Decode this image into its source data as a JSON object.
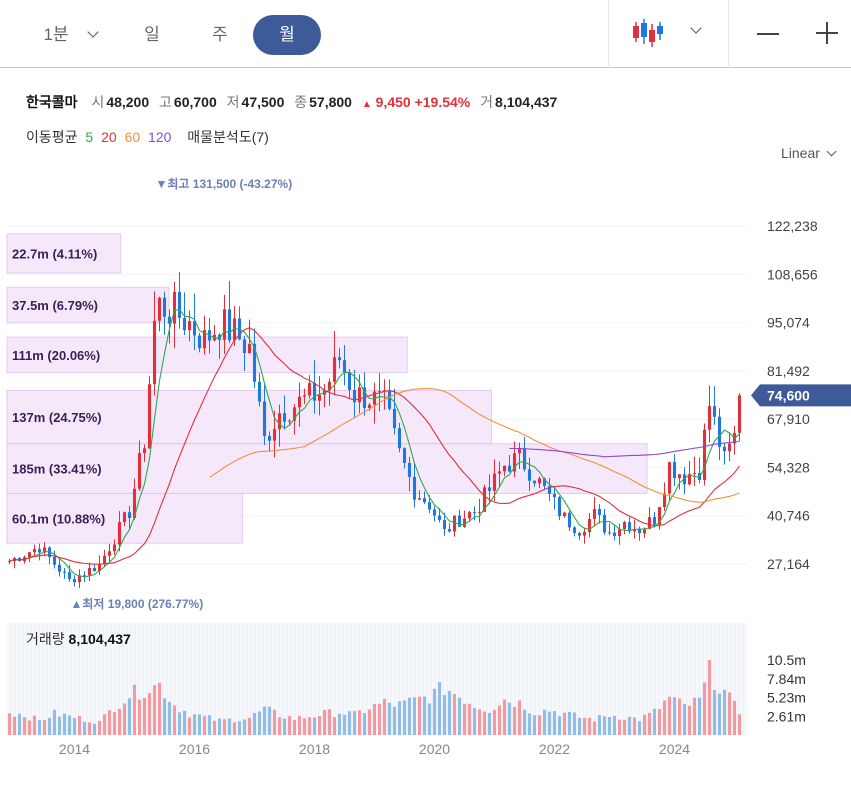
{
  "toolbar": {
    "timeframes": [
      {
        "label": "1분"
      },
      {
        "label": "일"
      },
      {
        "label": "주"
      },
      {
        "label": "월",
        "active": true
      }
    ],
    "chart_type_icon": "candlestick-icon",
    "zoom_out_icon": "minus-icon",
    "zoom_in_icon": "plus-icon"
  },
  "quote": {
    "name": "한국콜마",
    "open_label": "시",
    "open": "48,200",
    "high_label": "고",
    "high": "60,700",
    "low_label": "저",
    "low": "47,500",
    "close_label": "종",
    "close": "57,800",
    "change": "9,450",
    "change_pct": "+19.54%",
    "volume_label": "거",
    "volume": "8,104,437"
  },
  "indicators": {
    "ma_label": "이동평균",
    "ma_periods": [
      {
        "label": "5",
        "color": "#2eaa4a"
      },
      {
        "label": "20",
        "color": "#e0303a"
      },
      {
        "label": "60",
        "color": "#f0923a"
      },
      {
        "label": "120",
        "color": "#8a4ad8"
      }
    ],
    "volume_profile_label": "매물분석도(7)"
  },
  "scale_mode": "Linear",
  "colors": {
    "up": "#e0303a",
    "down": "#1f78e0",
    "accent": "#3d5a99"
  },
  "chart_data": {
    "type": "candlestick",
    "interval": "monthly",
    "y_ticks": [
      "122,238",
      "108,656",
      "95,074",
      "81,492",
      "67,910",
      "54,328",
      "40,746",
      "27,164"
    ],
    "y_tick_values": [
      122238,
      108656,
      95074,
      81492,
      67910,
      54328,
      40746,
      27164
    ],
    "current_price_label": "74,600",
    "current_price": 74600,
    "max_marker": {
      "label": "최고 131,500 (-43.27%)",
      "date": "2015-06",
      "value": 131500
    },
    "min_marker": {
      "label": "최저 19,800 (276.77%)",
      "date": "2014-01",
      "value": 19800
    },
    "x_ticks": [
      "2014",
      "2016",
      "2018",
      "2020",
      "2022",
      "2024"
    ],
    "x_start": "2012-12",
    "x_end": "2025-03",
    "volume_profile": [
      {
        "label": "22.7m (4.11%)",
        "low": 109000,
        "high": 120000,
        "share": 4.11
      },
      {
        "label": "37.5m (6.79%)",
        "low": 95000,
        "high": 105000,
        "share": 6.79
      },
      {
        "label": "111m (20.06%)",
        "low": 81000,
        "high": 91000,
        "share": 20.06
      },
      {
        "label": "137m (24.75%)",
        "low": 61000,
        "high": 76000,
        "share": 24.75
      },
      {
        "label": "185m (33.41%)",
        "low": 47000,
        "high": 61000,
        "share": 33.41
      },
      {
        "label": "60.1m (10.88%)",
        "low": 33000,
        "high": 47000,
        "share": 10.88
      }
    ],
    "close_anchors": [
      [
        "2012-12",
        28000
      ],
      [
        "2013-06",
        32000
      ],
      [
        "2013-12",
        22500
      ],
      [
        "2014-06",
        27000
      ],
      [
        "2014-12",
        42000
      ],
      [
        "2015-03",
        62000
      ],
      [
        "2015-05",
        95000
      ],
      [
        "2015-06",
        100000
      ],
      [
        "2015-09",
        98000
      ],
      [
        "2015-12",
        95000
      ],
      [
        "2016-03",
        90000
      ],
      [
        "2016-06",
        95000
      ],
      [
        "2016-09",
        92000
      ],
      [
        "2016-12",
        88000
      ],
      [
        "2017-03",
        62000
      ],
      [
        "2017-06",
        70000
      ],
      [
        "2017-09",
        72000
      ],
      [
        "2017-12",
        74000
      ],
      [
        "2018-03",
        76000
      ],
      [
        "2018-06",
        85000
      ],
      [
        "2018-09",
        75000
      ],
      [
        "2018-12",
        74000
      ],
      [
        "2019-03",
        72000
      ],
      [
        "2019-06",
        58000
      ],
      [
        "2019-09",
        48000
      ],
      [
        "2019-12",
        44000
      ],
      [
        "2020-03",
        36000
      ],
      [
        "2020-06",
        40000
      ],
      [
        "2020-09",
        42000
      ],
      [
        "2020-12",
        48000
      ],
      [
        "2021-03",
        55000
      ],
      [
        "2021-06",
        57000
      ],
      [
        "2021-09",
        52000
      ],
      [
        "2021-12",
        46000
      ],
      [
        "2022-03",
        40000
      ],
      [
        "2022-06",
        37000
      ],
      [
        "2022-09",
        41000
      ],
      [
        "2022-12",
        36000
      ],
      [
        "2023-03",
        39000
      ],
      [
        "2023-06",
        37000
      ],
      [
        "2023-09",
        40000
      ],
      [
        "2023-12",
        55000
      ],
      [
        "2024-03",
        52000
      ],
      [
        "2024-06",
        54000
      ],
      [
        "2024-08",
        72000
      ],
      [
        "2024-11",
        56000
      ],
      [
        "2025-01",
        63000
      ],
      [
        "2025-02",
        74600
      ]
    ],
    "volume_axis_ticks": [
      "10.5m",
      "7.84m",
      "5.23m",
      "2.61m"
    ],
    "volume_axis_values": [
      10500000,
      7840000,
      5230000,
      2610000
    ],
    "volume_label": "거래량",
    "volume_value": "8,104,437",
    "volume_points": [
      [
        "2012-12",
        3.2
      ],
      [
        "2013-03",
        2.8
      ],
      [
        "2013-06",
        2.0
      ],
      [
        "2013-09",
        3.0
      ],
      [
        "2013-12",
        2.6
      ],
      [
        "2014-03",
        2.2
      ],
      [
        "2014-06",
        1.8
      ],
      [
        "2014-09",
        4.0
      ],
      [
        "2014-12",
        5.6
      ],
      [
        "2015-03",
        6.4
      ],
      [
        "2015-06",
        7.0
      ],
      [
        "2015-09",
        4.2
      ],
      [
        "2015-12",
        3.0
      ],
      [
        "2016-03",
        2.5
      ],
      [
        "2016-06",
        2.0
      ],
      [
        "2016-09",
        2.2
      ],
      [
        "2016-12",
        2.4
      ],
      [
        "2017-03",
        3.6
      ],
      [
        "2017-06",
        2.8
      ],
      [
        "2017-09",
        2.3
      ],
      [
        "2017-12",
        2.6
      ],
      [
        "2018-03",
        3.0
      ],
      [
        "2018-06",
        3.2
      ],
      [
        "2018-09",
        2.8
      ],
      [
        "2018-12",
        3.8
      ],
      [
        "2019-03",
        4.5
      ],
      [
        "2019-06",
        4.2
      ],
      [
        "2019-09",
        4.8
      ],
      [
        "2019-12",
        5.4
      ],
      [
        "2020-03",
        6.6
      ],
      [
        "2020-06",
        5.5
      ],
      [
        "2020-09",
        4.2
      ],
      [
        "2020-12",
        3.6
      ],
      [
        "2021-03",
        5.0
      ],
      [
        "2021-06",
        4.5
      ],
      [
        "2021-09",
        3.2
      ],
      [
        "2021-12",
        3.5
      ],
      [
        "2022-03",
        3.0
      ],
      [
        "2022-06",
        2.5
      ],
      [
        "2022-09",
        2.2
      ],
      [
        "2022-12",
        2.8
      ],
      [
        "2023-03",
        2.5
      ],
      [
        "2023-06",
        2.2
      ],
      [
        "2023-09",
        3.2
      ],
      [
        "2023-12",
        5.2
      ],
      [
        "2024-03",
        4.0
      ],
      [
        "2024-06",
        4.8
      ],
      [
        "2024-08",
        8.8
      ],
      [
        "2024-11",
        6.0
      ],
      [
        "2025-01",
        4.0
      ],
      [
        "2025-02",
        3.2
      ]
    ]
  }
}
